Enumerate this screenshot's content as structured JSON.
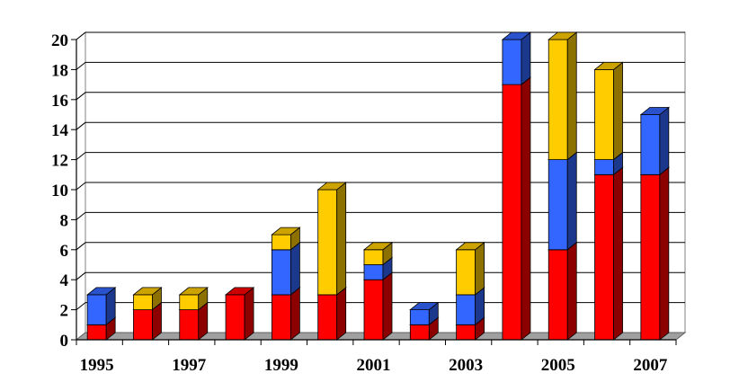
{
  "chart_data": {
    "type": "bar",
    "stacked": true,
    "three_d": true,
    "title": "",
    "xlabel": "",
    "ylabel": "",
    "ylim": [
      0,
      20
    ],
    "yticks": [
      0,
      2,
      4,
      6,
      8,
      10,
      12,
      14,
      16,
      18,
      20
    ],
    "grid": true,
    "legend": "none",
    "categories": [
      "1995",
      "1996",
      "1997",
      "1998",
      "1999",
      "2000",
      "2001",
      "2002",
      "2003",
      "2004",
      "2005",
      "2006",
      "2007"
    ],
    "xtick_labels": [
      "1995",
      "",
      "1997",
      "",
      "1999",
      "",
      "2001",
      "",
      "2003",
      "",
      "2005",
      "",
      "2007"
    ],
    "series": [
      {
        "color": "#ff0000",
        "values": [
          1,
          2,
          2,
          3,
          3,
          3,
          4,
          1,
          1,
          17,
          6,
          11,
          11
        ]
      },
      {
        "color": "#3366ff",
        "values": [
          2,
          0,
          0,
          0,
          3,
          0,
          1,
          1,
          2,
          3,
          6,
          1,
          4
        ]
      },
      {
        "color": "#ffcc00",
        "values": [
          0,
          1,
          1,
          0,
          1,
          7,
          1,
          0,
          3,
          0,
          8,
          6,
          0
        ]
      }
    ]
  }
}
